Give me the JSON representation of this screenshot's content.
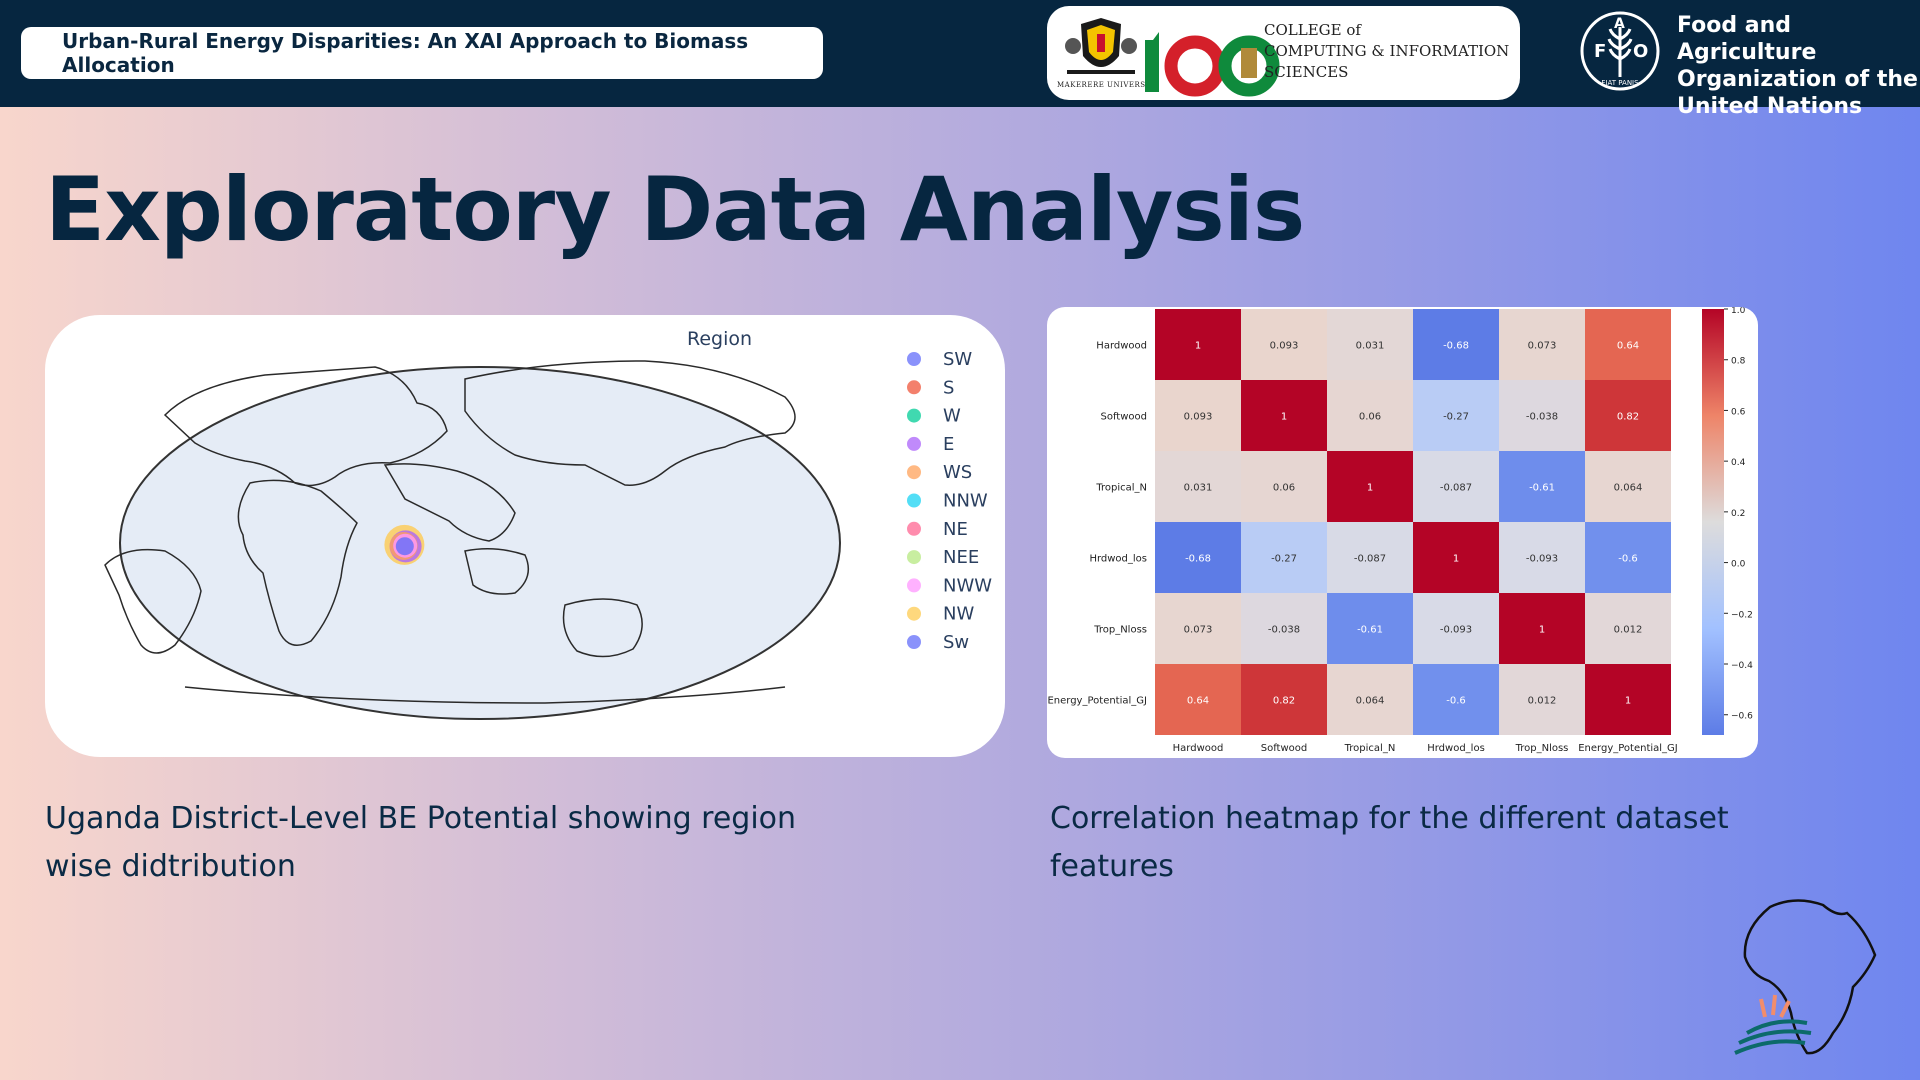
{
  "header": {
    "presentation_title": "Urban-Rural Energy Disparities: An XAI Approach to Biomass Allocation",
    "college_name": "COLLEGE of\nCOMPUTING & INFORMATION\nSCIENCES",
    "university_name": "MAKERERE UNIVERSITY",
    "fao_name": "Food and Agriculture\nOrganization of the\nUnited Nations",
    "fao_logo_letters": [
      "F",
      "A",
      "O"
    ],
    "fao_motto": "FIAT PANIS"
  },
  "slide": {
    "heading": "Exploratory Data Analysis",
    "map_caption": "Uganda District-Level BE Potential showing region\nwise didtribution",
    "heatmap_caption": "Correlation heatmap for the different dataset\nfeatures"
  },
  "chart_data": [
    {
      "type": "scatter",
      "subtype": "geo-map",
      "legend_title": "Region",
      "legend_placement": "right",
      "map_color": "#e5ecf6",
      "legend": [
        {
          "name": "SW",
          "color": "#636efa"
        },
        {
          "name": "S",
          "color": "#ef553b"
        },
        {
          "name": "W",
          "color": "#00cc96"
        },
        {
          "name": "E",
          "color": "#ab63fa"
        },
        {
          "name": "WS",
          "color": "#ffa15a"
        },
        {
          "name": "NNW",
          "color": "#19d3f3"
        },
        {
          "name": "NE",
          "color": "#ff6692"
        },
        {
          "name": "NEE",
          "color": "#b6e880"
        },
        {
          "name": "NWW",
          "color": "#ff97ff"
        },
        {
          "name": "NW",
          "color": "#fecb52"
        },
        {
          "name": "Sw",
          "color": "#636efa"
        }
      ],
      "points": [
        {
          "region": "NW",
          "lon": 32.2,
          "lat": 1.6,
          "color": "#fecb52"
        },
        {
          "region": "E",
          "lon": 32.8,
          "lat": 0.8,
          "color": "#ab63fa"
        },
        {
          "region": "WS",
          "lon": 31.8,
          "lat": 1.0,
          "color": "#ffa15a"
        },
        {
          "region": "NWW",
          "lon": 32.6,
          "lat": 1.2,
          "color": "#ff97ff"
        },
        {
          "region": "SW",
          "lon": 32.4,
          "lat": 0.9,
          "color": "#636efa"
        }
      ]
    },
    {
      "type": "heatmap",
      "x_labels": [
        "Hardwood",
        "Softwood",
        "Tropical_N",
        "Hrdwod_los",
        "Trop_Nloss",
        "Energy_Potential_GJ"
      ],
      "y_labels": [
        "Hardwood",
        "Softwood",
        "Tropical_N",
        "Hrdwod_los",
        "Trop_Nloss",
        "Energy_Potential_GJ"
      ],
      "values": [
        [
          1,
          0.093,
          0.031,
          -0.68,
          0.073,
          0.64
        ],
        [
          0.093,
          1,
          0.06,
          -0.27,
          -0.038,
          0.82
        ],
        [
          0.031,
          0.06,
          1,
          -0.087,
          -0.61,
          0.064
        ],
        [
          -0.68,
          -0.27,
          -0.087,
          1,
          -0.093,
          -0.6
        ],
        [
          0.073,
          -0.038,
          -0.61,
          -0.093,
          1,
          0.012
        ],
        [
          0.64,
          0.82,
          0.064,
          -0.6,
          0.012,
          1
        ]
      ],
      "value_labels": [
        [
          "1",
          "0.093",
          "0.031",
          "-0.68",
          "0.073",
          "0.64"
        ],
        [
          "0.093",
          "1",
          "0.06",
          "-0.27",
          "-0.038",
          "0.82"
        ],
        [
          "0.031",
          "0.06",
          "1",
          "-0.087",
          "-0.61",
          "0.064"
        ],
        [
          "-0.68",
          "-0.27",
          "-0.087",
          "1",
          "-0.093",
          "-0.6"
        ],
        [
          "0.073",
          "-0.038",
          "-0.61",
          "-0.093",
          "1",
          "0.012"
        ],
        [
          "0.64",
          "0.82",
          "0.064",
          "-0.6",
          "0.012",
          "1"
        ]
      ],
      "colorscale": "coolwarm",
      "vmin": -0.68,
      "vmax": 1,
      "colorbar_ticks": [
        1.0,
        0.8,
        0.6,
        0.4,
        0.2,
        0.0,
        -0.2,
        -0.4,
        -0.6
      ],
      "colorbar_tick_labels": [
        "1.0",
        "0.8",
        "0.6",
        "0.4",
        "0.2",
        "0.0",
        "−0.2",
        "−0.4",
        "−0.6"
      ]
    }
  ]
}
